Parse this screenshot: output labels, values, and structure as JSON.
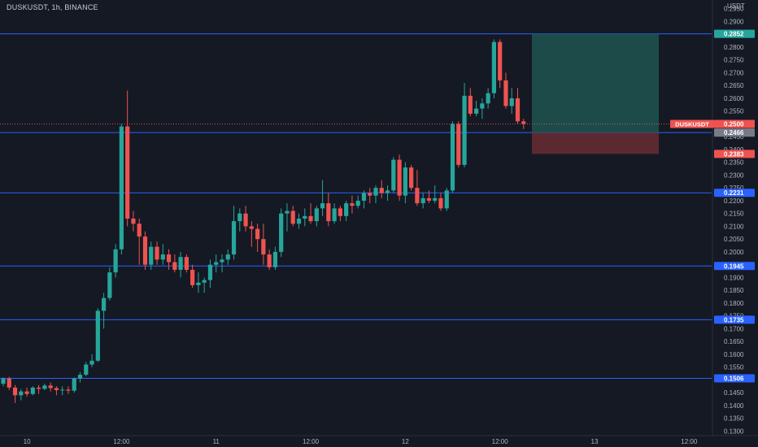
{
  "header": {
    "symbol_line": "DUSKUSDT, 1h, BINANCE",
    "price_currency": "USDT"
  },
  "colors": {
    "background": "#151924",
    "up": "#26a69a",
    "down": "#ef5350",
    "level_line": "#2962ff",
    "axis_text": "#b2b5be",
    "long_profit_zone": "#1f5c57",
    "long_stop_zone": "#6a2d33"
  },
  "chart_data": {
    "type": "candlestick",
    "ylim": [
      0.1295,
      0.2965
    ],
    "y_ticks": [
      "0.2950",
      "0.2900",
      "0.2850",
      "0.2800",
      "0.2750",
      "0.2700",
      "0.2650",
      "0.2600",
      "0.2550",
      "0.2500",
      "0.2450",
      "0.2400",
      "0.2350",
      "0.2300",
      "0.2250",
      "0.2200",
      "0.2150",
      "0.2100",
      "0.2050",
      "0.2000",
      "0.1950",
      "0.1900",
      "0.1850",
      "0.1800",
      "0.1750",
      "0.1700",
      "0.1650",
      "0.1600",
      "0.1550",
      "0.1500",
      "0.1450",
      "0.1400",
      "0.1350",
      "0.1300"
    ],
    "x_ticks": [
      {
        "label": "10",
        "index": 4
      },
      {
        "label": "12:00",
        "index": 20
      },
      {
        "label": "11",
        "index": 36
      },
      {
        "label": "12:00",
        "index": 52
      },
      {
        "label": "12",
        "index": 68
      },
      {
        "label": "12:00",
        "index": 84
      },
      {
        "label": "13",
        "index": 100
      },
      {
        "label": "12:00",
        "index": 116
      }
    ],
    "candles": [
      [
        0.1485,
        0.151,
        0.1475,
        0.1505
      ],
      [
        0.1505,
        0.1512,
        0.146,
        0.147
      ],
      [
        0.147,
        0.148,
        0.141,
        0.144
      ],
      [
        0.144,
        0.1465,
        0.142,
        0.1455
      ],
      [
        0.1455,
        0.147,
        0.1435,
        0.1445
      ],
      [
        0.1445,
        0.1475,
        0.144,
        0.147
      ],
      [
        0.147,
        0.148,
        0.1445,
        0.1465
      ],
      [
        0.1465,
        0.1485,
        0.146,
        0.1478
      ],
      [
        0.1478,
        0.149,
        0.1455,
        0.1468
      ],
      [
        0.1468,
        0.1475,
        0.144,
        0.146
      ],
      [
        0.146,
        0.1475,
        0.144,
        0.1462
      ],
      [
        0.1462,
        0.1475,
        0.1445,
        0.1458
      ],
      [
        0.1458,
        0.151,
        0.145,
        0.1505
      ],
      [
        0.1505,
        0.153,
        0.149,
        0.152
      ],
      [
        0.152,
        0.157,
        0.1515,
        0.156
      ],
      [
        0.156,
        0.16,
        0.155,
        0.1575
      ],
      [
        0.1575,
        0.178,
        0.157,
        0.177
      ],
      [
        0.177,
        0.184,
        0.17,
        0.182
      ],
      [
        0.182,
        0.194,
        0.181,
        0.192
      ],
      [
        0.192,
        0.203,
        0.19,
        0.201
      ],
      [
        0.201,
        0.25,
        0.199,
        0.249
      ],
      [
        0.249,
        0.263,
        0.21,
        0.213
      ],
      [
        0.213,
        0.216,
        0.208,
        0.211
      ],
      [
        0.211,
        0.213,
        0.195,
        0.206
      ],
      [
        0.206,
        0.208,
        0.193,
        0.195
      ],
      [
        0.195,
        0.204,
        0.193,
        0.202
      ],
      [
        0.202,
        0.204,
        0.195,
        0.197
      ],
      [
        0.197,
        0.203,
        0.195,
        0.199
      ],
      [
        0.199,
        0.201,
        0.193,
        0.196
      ],
      [
        0.196,
        0.199,
        0.192,
        0.193
      ],
      [
        0.193,
        0.2,
        0.19,
        0.198
      ],
      [
        0.198,
        0.199,
        0.192,
        0.193
      ],
      [
        0.193,
        0.195,
        0.186,
        0.187
      ],
      [
        0.187,
        0.192,
        0.184,
        0.188
      ],
      [
        0.188,
        0.19,
        0.184,
        0.189
      ],
      [
        0.189,
        0.197,
        0.186,
        0.195
      ],
      [
        0.195,
        0.199,
        0.192,
        0.196
      ],
      [
        0.196,
        0.199,
        0.192,
        0.197
      ],
      [
        0.197,
        0.201,
        0.195,
        0.199
      ],
      [
        0.199,
        0.218,
        0.197,
        0.212
      ],
      [
        0.212,
        0.217,
        0.208,
        0.215
      ],
      [
        0.215,
        0.218,
        0.208,
        0.21
      ],
      [
        0.21,
        0.212,
        0.202,
        0.209
      ],
      [
        0.209,
        0.211,
        0.2,
        0.205
      ],
      [
        0.205,
        0.211,
        0.195,
        0.199
      ],
      [
        0.199,
        0.201,
        0.193,
        0.194
      ],
      [
        0.194,
        0.202,
        0.193,
        0.2
      ],
      [
        0.2,
        0.217,
        0.198,
        0.215
      ],
      [
        0.215,
        0.219,
        0.208,
        0.216
      ],
      [
        0.216,
        0.218,
        0.21,
        0.211
      ],
      [
        0.211,
        0.215,
        0.209,
        0.213
      ],
      [
        0.213,
        0.217,
        0.21,
        0.214
      ],
      [
        0.214,
        0.219,
        0.211,
        0.212
      ],
      [
        0.212,
        0.218,
        0.21,
        0.217
      ],
      [
        0.217,
        0.228,
        0.214,
        0.219
      ],
      [
        0.219,
        0.223,
        0.21,
        0.212
      ],
      [
        0.212,
        0.219,
        0.211,
        0.217
      ],
      [
        0.217,
        0.218,
        0.212,
        0.214
      ],
      [
        0.214,
        0.22,
        0.212,
        0.219
      ],
      [
        0.219,
        0.222,
        0.215,
        0.218
      ],
      [
        0.218,
        0.222,
        0.217,
        0.22
      ],
      [
        0.22,
        0.224,
        0.217,
        0.223
      ],
      [
        0.223,
        0.225,
        0.219,
        0.222
      ],
      [
        0.222,
        0.226,
        0.219,
        0.225
      ],
      [
        0.225,
        0.228,
        0.221,
        0.223
      ],
      [
        0.223,
        0.226,
        0.22,
        0.224
      ],
      [
        0.224,
        0.237,
        0.223,
        0.236
      ],
      [
        0.236,
        0.238,
        0.22,
        0.222
      ],
      [
        0.222,
        0.235,
        0.219,
        0.233
      ],
      [
        0.233,
        0.234,
        0.224,
        0.225
      ],
      [
        0.225,
        0.232,
        0.218,
        0.219
      ],
      [
        0.219,
        0.223,
        0.217,
        0.221
      ],
      [
        0.221,
        0.224,
        0.219,
        0.22
      ],
      [
        0.22,
        0.226,
        0.219,
        0.221
      ],
      [
        0.221,
        0.223,
        0.216,
        0.217
      ],
      [
        0.217,
        0.225,
        0.216,
        0.224
      ],
      [
        0.224,
        0.251,
        0.223,
        0.25
      ],
      [
        0.25,
        0.251,
        0.233,
        0.234
      ],
      [
        0.234,
        0.266,
        0.233,
        0.261
      ],
      [
        0.261,
        0.264,
        0.253,
        0.254
      ],
      [
        0.254,
        0.259,
        0.253,
        0.256
      ],
      [
        0.256,
        0.26,
        0.252,
        0.258
      ],
      [
        0.258,
        0.264,
        0.256,
        0.262
      ],
      [
        0.262,
        0.283,
        0.26,
        0.282
      ],
      [
        0.282,
        0.283,
        0.264,
        0.267
      ],
      [
        0.267,
        0.27,
        0.256,
        0.257
      ],
      [
        0.257,
        0.264,
        0.254,
        0.26
      ],
      [
        0.26,
        0.264,
        0.25,
        0.251
      ],
      [
        0.251,
        0.252,
        0.248,
        0.25
      ]
    ],
    "horizontal_levels": [
      "0.2852",
      "0.2466",
      "0.2231",
      "0.1945",
      "0.1735",
      "0.1506"
    ],
    "current_price": {
      "symbol": "DUSKUSDT",
      "value": "0.2500"
    },
    "long_position": {
      "target": "0.2852",
      "entry": "0.2466",
      "stop": "0.2383"
    }
  }
}
